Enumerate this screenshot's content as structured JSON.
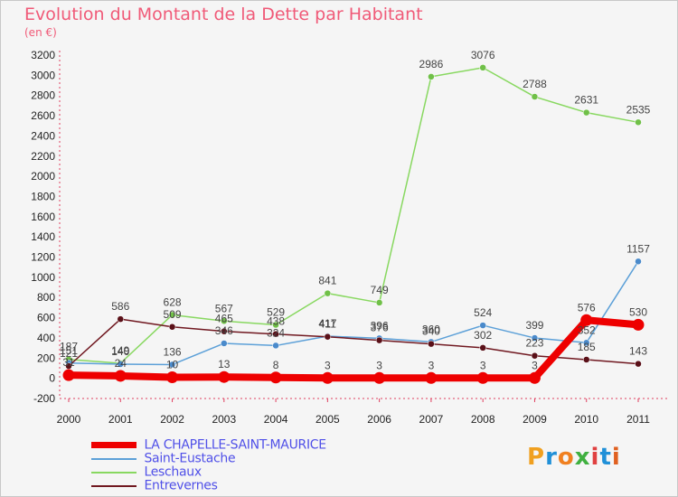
{
  "title": "Evolution du Montant de la Dette par Habitant",
  "subtitle": "(en €)",
  "logo": "Proxiti",
  "chart_data": {
    "type": "line",
    "title": "Evolution du Montant de la Dette par Habitant",
    "subtitle": "(en €)",
    "xlabel": "",
    "ylabel": "",
    "x": [
      "2000",
      "2001",
      "2002",
      "2003",
      "2004",
      "2005",
      "2006",
      "2007",
      "2008",
      "2009",
      "2010",
      "2011"
    ],
    "ylim": [
      -200,
      3200
    ],
    "yticks": [
      -200,
      0,
      200,
      400,
      600,
      800,
      1000,
      1200,
      1400,
      1600,
      1800,
      2000,
      2200,
      2400,
      2600,
      2800,
      3000,
      3200
    ],
    "grid": false,
    "legend_position": "bottom-left",
    "series": [
      {
        "name": "LA CHAPELLE-SAINT-MAURICE",
        "color": "#ee0000",
        "values": [
          31,
          24,
          10,
          13,
          8,
          3,
          3,
          3,
          3,
          3,
          576,
          530
        ]
      },
      {
        "name": "Saint-Eustache",
        "color": "#5ca0d8",
        "values": [
          151,
          140,
          136,
          346,
          324,
          417,
          396,
          360,
          524,
          399,
          352,
          1157
        ]
      },
      {
        "name": "Leschaux",
        "color": "#88d860",
        "values": [
          187,
          149,
          628,
          567,
          529,
          841,
          749,
          2986,
          3076,
          2788,
          2631,
          2535
        ]
      },
      {
        "name": "Entrevernes",
        "color": "#701820",
        "values": [
          121,
          586,
          509,
          465,
          438,
          411,
          376,
          340,
          302,
          223,
          185,
          143
        ]
      }
    ]
  }
}
